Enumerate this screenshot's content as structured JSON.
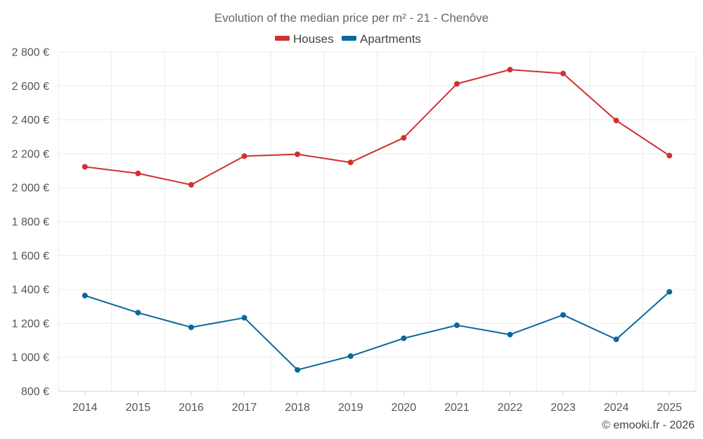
{
  "chart_data": {
    "type": "line",
    "title": "Evolution of the median price per m² - 21 - Chenôve",
    "categories": [
      "2014",
      "2015",
      "2016",
      "2017",
      "2018",
      "2019",
      "2020",
      "2021",
      "2022",
      "2023",
      "2024",
      "2025"
    ],
    "series": [
      {
        "name": "Houses",
        "color": "#d0302e",
        "values": [
          2123,
          2084,
          2017,
          2186,
          2197,
          2149,
          2294,
          2612,
          2696,
          2673,
          2396,
          2189
        ]
      },
      {
        "name": "Apartments",
        "color": "#07689c",
        "values": [
          1364,
          1263,
          1177,
          1233,
          926,
          1007,
          1112,
          1189,
          1134,
          1250,
          1106,
          1386
        ]
      }
    ],
    "ylim": [
      800,
      2800
    ],
    "yticks": [
      800,
      1000,
      1200,
      1400,
      1600,
      1800,
      2000,
      2200,
      2400,
      2600,
      2800
    ],
    "ytick_labels": [
      "800 €",
      "1 000 €",
      "1 200 €",
      "1 400 €",
      "1 600 €",
      "1 800 €",
      "2 000 €",
      "2 200 €",
      "2 400 €",
      "2 600 €",
      "2 800 €"
    ],
    "grid": true,
    "legend_position": "top-center",
    "xlabel": "",
    "ylabel": ""
  },
  "credit": "© emooki.fr - 2026"
}
